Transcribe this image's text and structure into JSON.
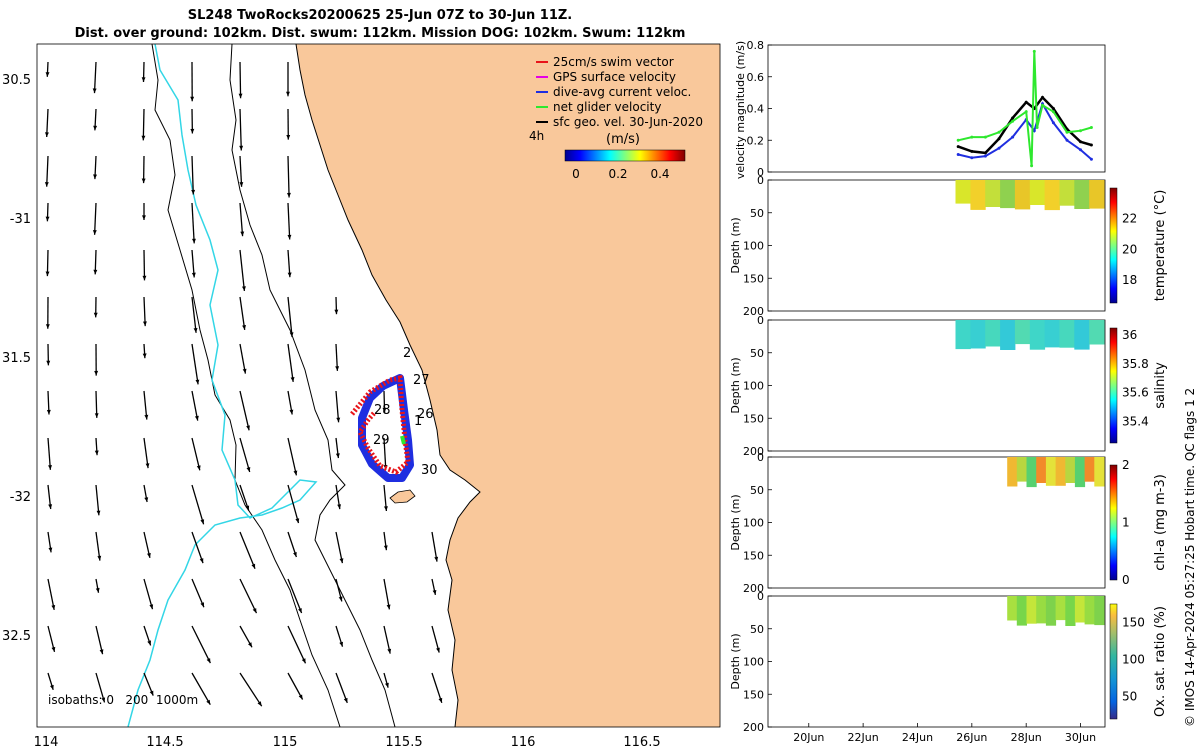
{
  "header": {
    "title_line1": "SL248 TwoRocks20200625 25-Jun 07Z to 30-Jun 11Z.",
    "title_line2": "Dist. over ground: 102km. Dist. swum: 112km. Mission DOG: 102km. Swum: 112km"
  },
  "map": {
    "lon_ticks": [
      "114",
      "114.5",
      "115",
      "115.5",
      "116",
      "116.5"
    ],
    "lat_ticks": [
      "30.5",
      "-31",
      "31.5",
      "-32",
      "32.5"
    ],
    "isobath_label": "isobaths: 0   200  1000m",
    "land_color": "#f9c89b",
    "isobath_200_color": "#33d6e6",
    "legend": [
      {
        "label": "25cm/s swim vector",
        "color": "#e8141a"
      },
      {
        "label": "GPS surface velocity",
        "color": "#e600e6"
      },
      {
        "label": "dive-avg current veloc.",
        "color": "#1f2ee0"
      },
      {
        "label": "net glider velocity",
        "color": "#2ee82e"
      },
      {
        "label": "sfc geo. vel. 30-Jun-2020",
        "color": "#000000"
      }
    ],
    "scale_note": "4h",
    "colorbar_label": "(m/s)",
    "colorbar_ticks": [
      "0",
      "0.2",
      "0.4"
    ],
    "day_labels": [
      "2",
      "27",
      "28",
      "26",
      "1",
      "29",
      "30"
    ]
  },
  "chart_data": [
    {
      "type": "line",
      "ylabel": "velocity magnitude (m/s)",
      "ylim": [
        0,
        0.8
      ],
      "yticks": [
        "0",
        "0.2",
        "0.4",
        "0.6",
        "0.8"
      ],
      "series": [
        {
          "color": "#000000",
          "x": [
            25.5,
            26.0,
            26.5,
            27.0,
            27.5,
            28.0,
            28.3,
            28.6,
            29.0,
            29.5,
            30.0,
            30.4
          ],
          "values": [
            0.16,
            0.13,
            0.12,
            0.21,
            0.34,
            0.44,
            0.4,
            0.47,
            0.4,
            0.27,
            0.19,
            0.17
          ]
        },
        {
          "color": "#1f2ee0",
          "x": [
            25.5,
            26.0,
            26.5,
            27.0,
            27.5,
            28.0,
            28.3,
            28.6,
            29.0,
            29.5,
            30.0,
            30.4
          ],
          "values": [
            0.11,
            0.09,
            0.1,
            0.15,
            0.22,
            0.33,
            0.26,
            0.43,
            0.31,
            0.2,
            0.14,
            0.08
          ]
        },
        {
          "color": "#2ee82e",
          "x": [
            25.5,
            26.0,
            26.5,
            27.0,
            27.5,
            28.0,
            28.2,
            28.3,
            28.4,
            28.6,
            29.0,
            29.5,
            30.0,
            30.4
          ],
          "values": [
            0.2,
            0.22,
            0.22,
            0.25,
            0.32,
            0.38,
            0.04,
            0.76,
            0.28,
            0.42,
            0.38,
            0.25,
            0.26,
            0.28
          ]
        }
      ]
    },
    {
      "type": "heatmap",
      "zlabel": "temperature (°C)",
      "ylabel": "Depth (m)",
      "yticks": [
        "0",
        "50",
        "100",
        "150",
        "200"
      ],
      "cticks": [
        "18",
        "20",
        "22"
      ],
      "crange": [
        16.5,
        24
      ]
    },
    {
      "type": "heatmap",
      "zlabel": "salinity",
      "ylabel": "Depth (m)",
      "yticks": [
        "0",
        "50",
        "100",
        "150",
        "200"
      ],
      "cticks": [
        "35.4",
        "35.6",
        "35.8",
        "36"
      ],
      "crange": [
        35.25,
        36.05
      ]
    },
    {
      "type": "heatmap",
      "zlabel": "chl-a (mg m-3)",
      "ylabel": "Depth (m)",
      "yticks": [
        "0",
        "50",
        "100",
        "150",
        "200"
      ],
      "cticks": [
        "0",
        "1",
        "2"
      ],
      "crange": [
        0,
        2
      ]
    },
    {
      "type": "heatmap",
      "zlabel": "Ox. sat. ratio (%)",
      "ylabel": "Depth (m)",
      "yticks": [
        "0",
        "50",
        "100",
        "150",
        "200"
      ],
      "cticks": [
        "50",
        "100",
        "150"
      ],
      "crange": [
        20,
        175
      ]
    }
  ],
  "time_axis": {
    "ticks": [
      "20Jun",
      "22Jun",
      "24Jun",
      "26Jun",
      "28Jun",
      "30Jun"
    ],
    "tick_days": [
      20,
      22,
      24,
      26,
      28,
      30
    ],
    "xlim": [
      18.5,
      30.9
    ]
  },
  "credit": "© IMOS 14-Apr-2024 05:27:25 Hobart time. QC flags 1  2"
}
